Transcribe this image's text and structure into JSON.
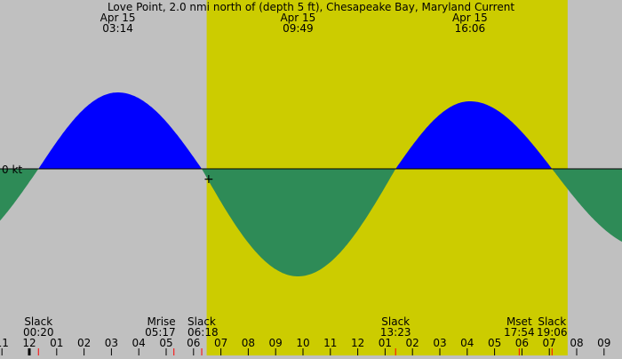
{
  "title": "Love Point, 2.0 nmi north of (depth 5 ft), Chesapeake Bay, Maryland Current",
  "colors": {
    "night": "#c0c0c0",
    "day": "#cccc00",
    "flood": "#0000ff",
    "ebb": "#2e8b57",
    "event_tick": "#ff0000"
  },
  "chart_data": {
    "type": "area",
    "zero_label": "0 kt",
    "x_unit": "hour of day",
    "daylight": [
      6.48,
      19.67
    ],
    "extrema_labels": [
      {
        "date": "Apr 15",
        "time": "03:14",
        "hour": 3.233,
        "value": 0.86
      },
      {
        "date": "Apr 15",
        "time": "09:49",
        "hour": 9.817,
        "value": -1.21
      },
      {
        "date": "Apr 15",
        "time": "16:06",
        "hour": 16.1,
        "value": 0.76
      },
      {
        "date": "Apr 15",
        "time": "",
        "hour": 22.6,
        "value": -0.9
      }
    ],
    "curve_points": [
      {
        "hour": -6.1,
        "value": 0
      },
      {
        "hour": -3.0,
        "value": -0.95
      },
      {
        "hour": 0.333,
        "value": 0
      },
      {
        "hour": 3.233,
        "value": 0.86
      },
      {
        "hour": 6.3,
        "value": 0
      },
      {
        "hour": 9.817,
        "value": -1.21
      },
      {
        "hour": 13.383,
        "value": 0
      },
      {
        "hour": 16.1,
        "value": 0.76
      },
      {
        "hour": 19.1,
        "value": 0
      },
      {
        "hour": 22.6,
        "value": -0.9
      },
      {
        "hour": 25.5,
        "value": 0
      }
    ],
    "events": [
      {
        "name": "Slack",
        "time": "00:20",
        "hour": 0.333
      },
      {
        "name": "Mrise",
        "time": "05:17",
        "hour": 5.283
      },
      {
        "name": "Slack",
        "time": "06:18",
        "hour": 6.3
      },
      {
        "name": "Slack",
        "time": "13:23",
        "hour": 13.383
      },
      {
        "name": "Mset",
        "time": "17:54",
        "hour": 17.9
      },
      {
        "name": "Slack",
        "time": "19:06",
        "hour": 19.1
      }
    ],
    "hour_ticks": [
      {
        "hour": -1,
        "label": "11"
      },
      {
        "hour": 0,
        "label": "12"
      },
      {
        "hour": 1,
        "label": "01"
      },
      {
        "hour": 2,
        "label": "02"
      },
      {
        "hour": 3,
        "label": "03"
      },
      {
        "hour": 4,
        "label": "04"
      },
      {
        "hour": 5,
        "label": "05"
      },
      {
        "hour": 6,
        "label": "06"
      },
      {
        "hour": 7,
        "label": "07"
      },
      {
        "hour": 8,
        "label": "08"
      },
      {
        "hour": 9,
        "label": "09"
      },
      {
        "hour": 10,
        "label": "10"
      },
      {
        "hour": 11,
        "label": "11"
      },
      {
        "hour": 12,
        "label": "12"
      },
      {
        "hour": 13,
        "label": "01"
      },
      {
        "hour": 14,
        "label": "02"
      },
      {
        "hour": 15,
        "label": "03"
      },
      {
        "hour": 16,
        "label": "04"
      },
      {
        "hour": 17,
        "label": "05"
      },
      {
        "hour": 18,
        "label": "06"
      },
      {
        "hour": 19,
        "label": "07"
      },
      {
        "hour": 20,
        "label": "08"
      },
      {
        "hour": 21,
        "label": "09"
      },
      {
        "hour": 22,
        "label": "10"
      }
    ]
  }
}
